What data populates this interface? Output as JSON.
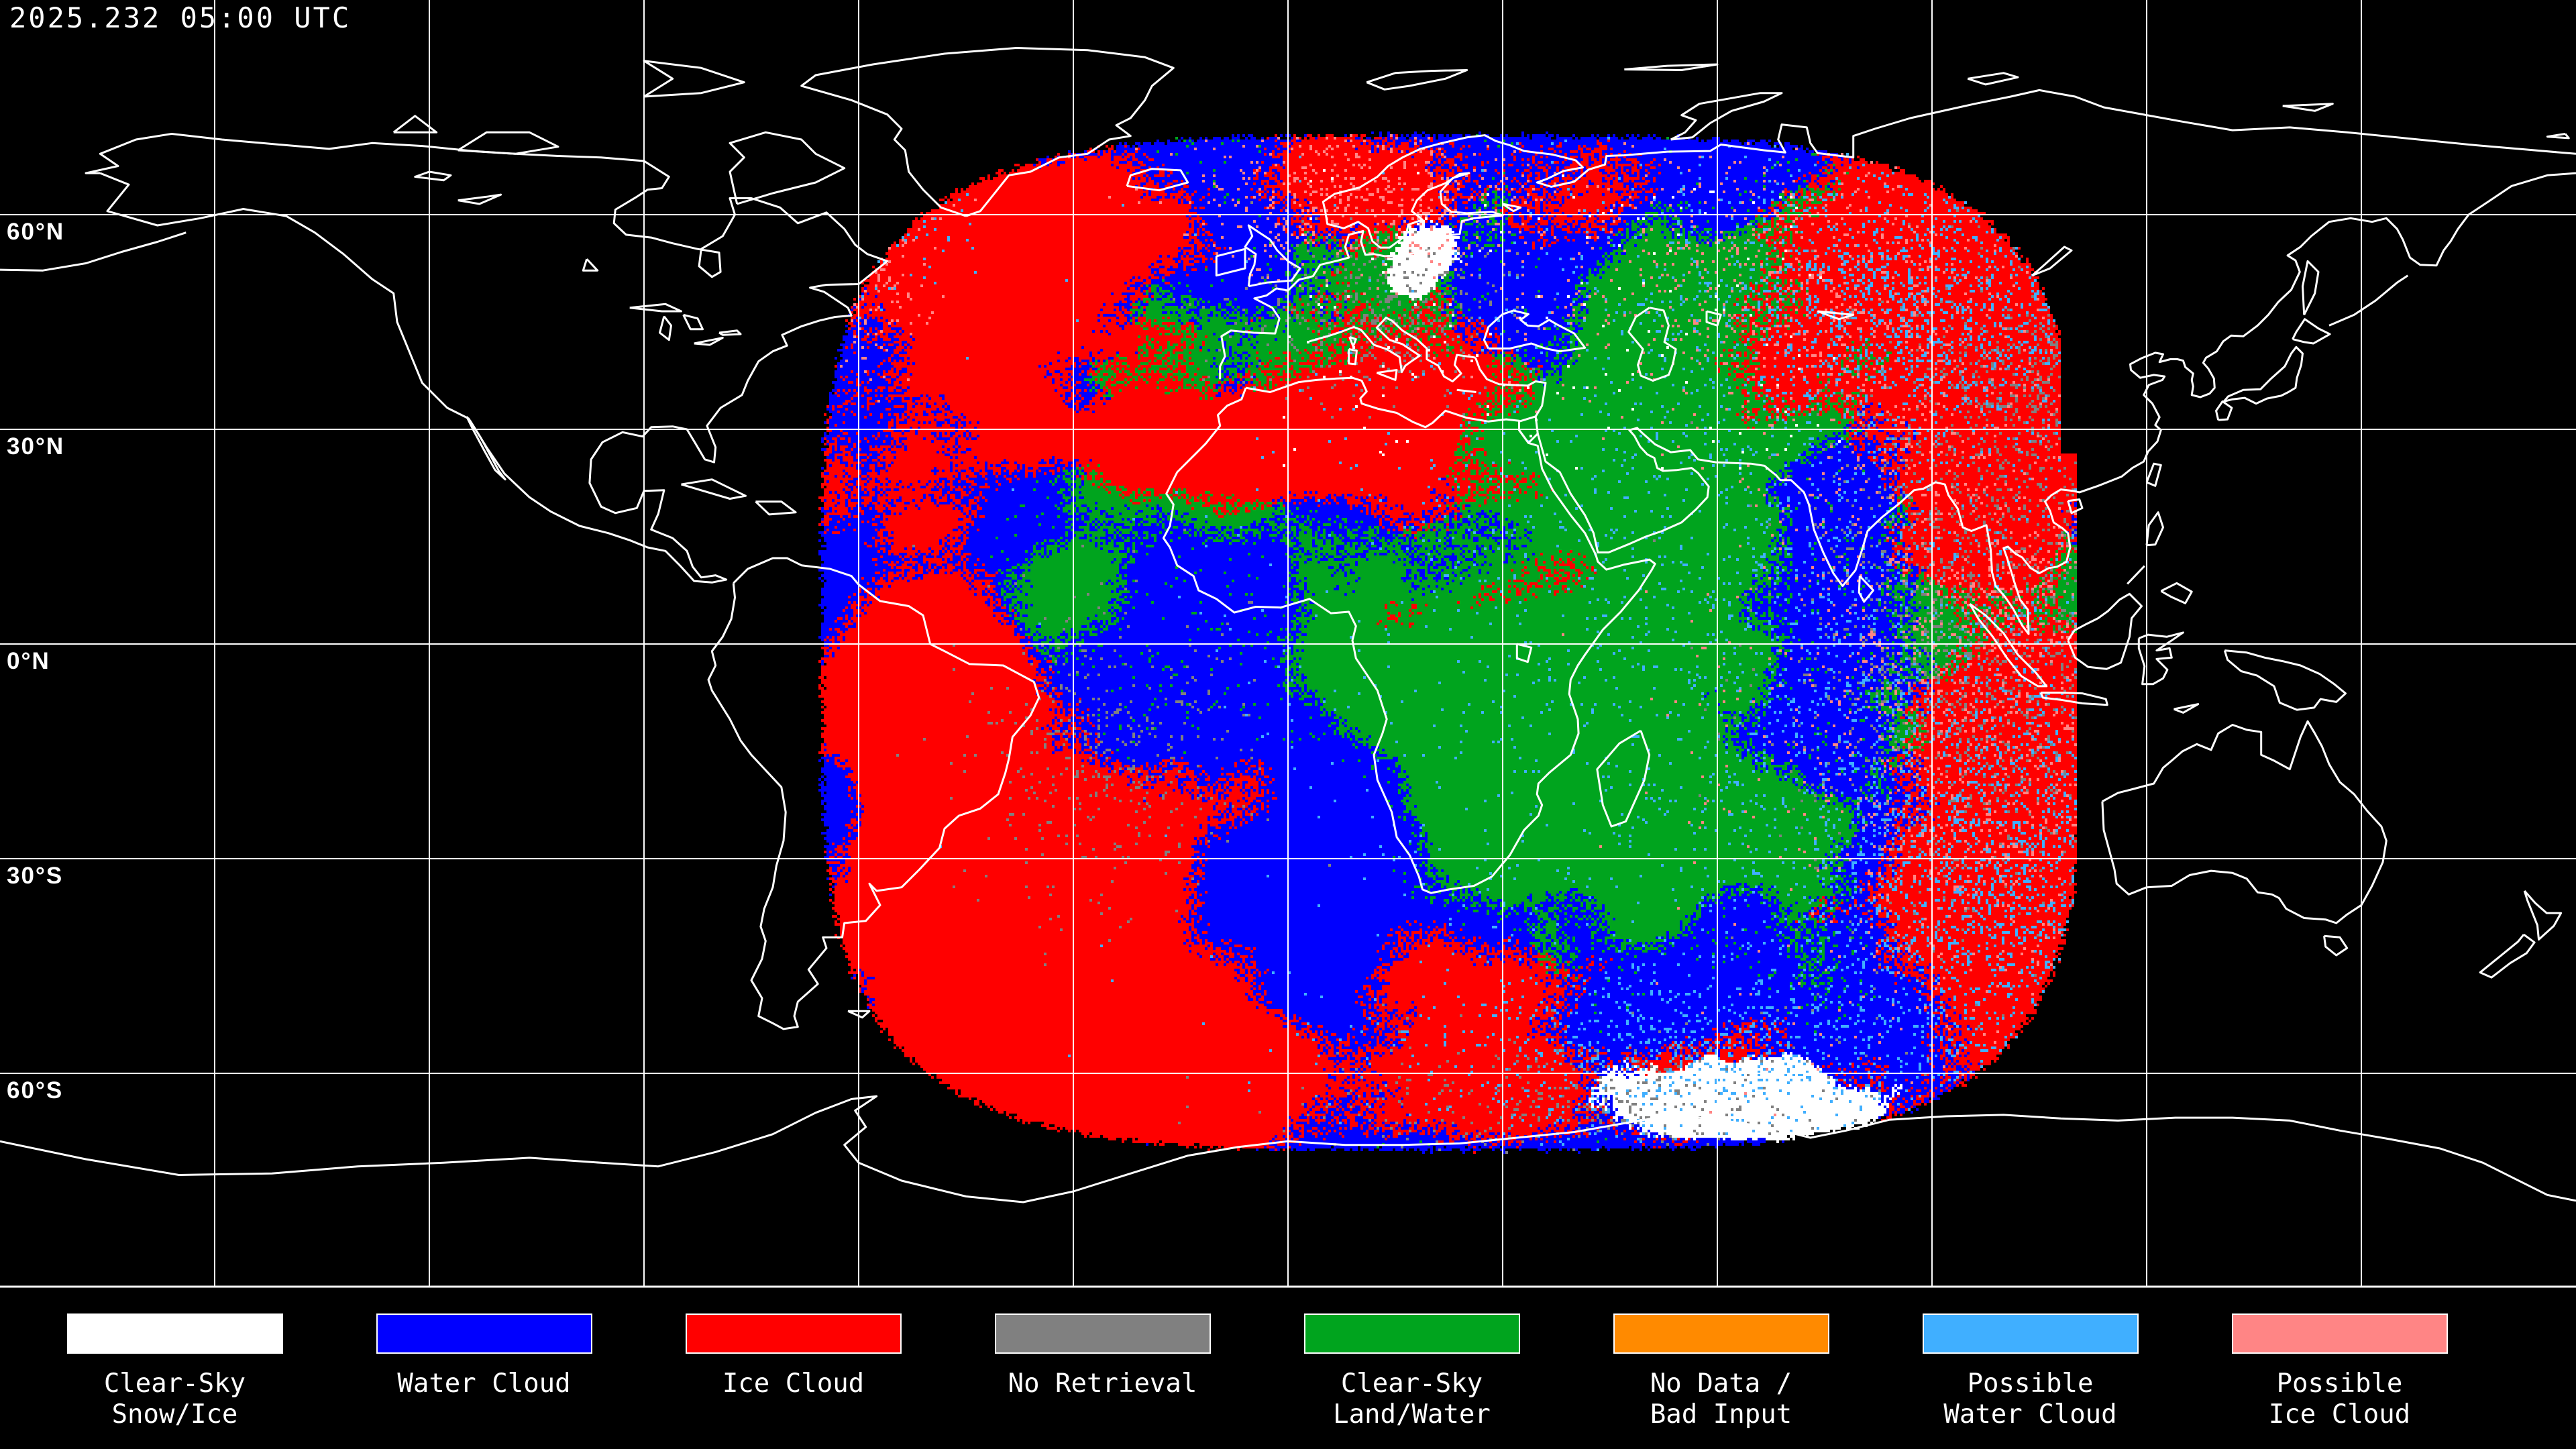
{
  "header": {
    "timestamp": "2025.232 05:00 UTC"
  },
  "map": {
    "background_color": "#000000",
    "gridline_color": "#ffffff",
    "coastline_color": "#ffffff",
    "latitude_labels": [
      "60°N",
      "30°N",
      "0°N",
      "30°S",
      "60°S"
    ],
    "palette": {
      "clear_sky_snow_ice": "#ffffff",
      "water_cloud": "#0000ff",
      "ice_cloud": "#ff0000",
      "no_retrieval": "#808080",
      "clear_sky_land_water": "#00a41e",
      "no_data_bad_input": "#ff8a00",
      "possible_water_cloud": "#40afff",
      "possible_ice_cloud": "#ff8585"
    }
  },
  "legend": {
    "items": [
      {
        "id": "clear-sky-snow-ice",
        "label_lines": [
          "Clear-Sky",
          "Snow/Ice"
        ],
        "color": "#ffffff"
      },
      {
        "id": "water-cloud",
        "label_lines": [
          "Water Cloud"
        ],
        "color": "#0000ff"
      },
      {
        "id": "ice-cloud",
        "label_lines": [
          "Ice Cloud"
        ],
        "color": "#ff0000"
      },
      {
        "id": "no-retrieval",
        "label_lines": [
          "No Retrieval"
        ],
        "color": "#808080"
      },
      {
        "id": "clear-sky-land-water",
        "label_lines": [
          "Clear-Sky",
          "Land/Water"
        ],
        "color": "#00a41e"
      },
      {
        "id": "no-data-bad-input",
        "label_lines": [
          "No Data /",
          "Bad Input"
        ],
        "color": "#ff8a00"
      },
      {
        "id": "possible-water-cloud",
        "label_lines": [
          "Possible",
          "Water Cloud"
        ],
        "color": "#40afff"
      },
      {
        "id": "possible-ice-cloud",
        "label_lines": [
          "Possible",
          "Ice Cloud"
        ],
        "color": "#ff8585"
      }
    ]
  }
}
